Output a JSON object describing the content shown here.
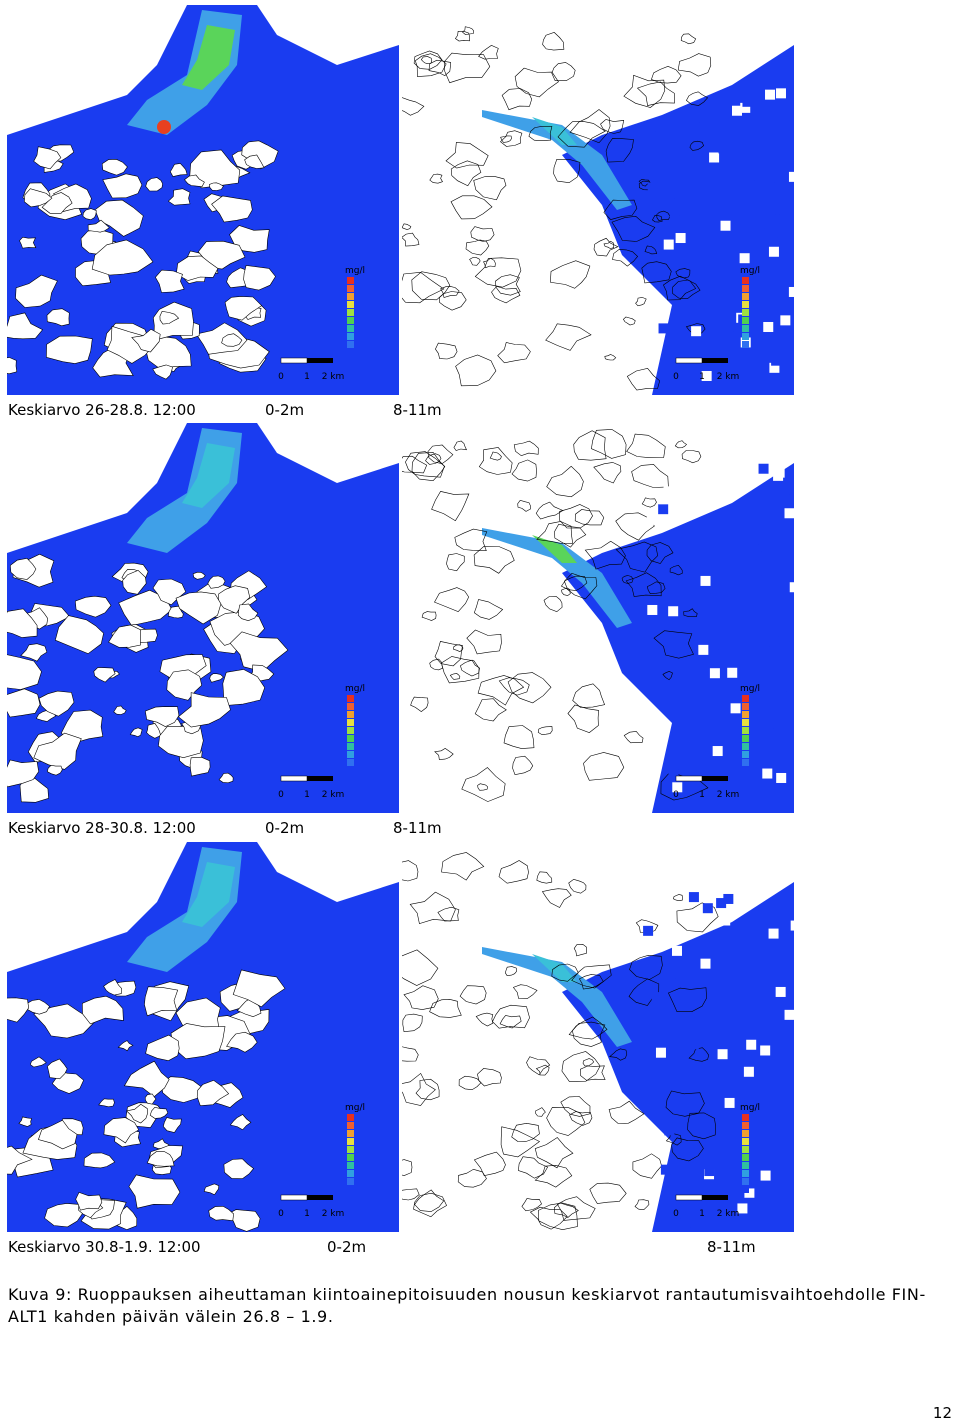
{
  "rows": [
    {
      "label": "Keskiarvo 26-28.8. 12:00",
      "left": "0-2m",
      "right": "8-11m"
    },
    {
      "label": "Keskiarvo 28-30.8. 12:00",
      "left": "0-2m",
      "right": "8-11m"
    },
    {
      "label": "Keskiarvo 30.8-1.9. 12:00",
      "left": "0-2m",
      "right": "8-11m"
    }
  ],
  "map_legend": {
    "unit": "mg/l",
    "scale": [
      "0",
      "1",
      "2 km"
    ]
  },
  "caption": "Kuva 9: Ruoppauksen aiheuttaman kiintoainepitoisuuden nousun keskiarvot rantautumisvaihtoehdolle FIN-ALT1 kahden päivän välein 26.8 – 1.9.",
  "page_number": "12"
}
